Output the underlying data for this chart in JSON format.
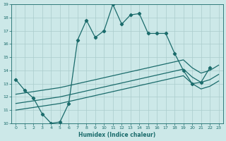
{
  "xlabel": "Humidex (Indice chaleur)",
  "bg_color": "#cce8e8",
  "line_color": "#1a6b6b",
  "grid_color": "#aacccc",
  "xlim": [
    -0.5,
    23.5
  ],
  "ylim": [
    10,
    19
  ],
  "yticks": [
    10,
    11,
    12,
    13,
    14,
    15,
    16,
    17,
    18,
    19
  ],
  "xticks": [
    0,
    1,
    2,
    3,
    4,
    5,
    6,
    7,
    8,
    9,
    10,
    11,
    12,
    13,
    14,
    15,
    16,
    17,
    18,
    19,
    20,
    21,
    22,
    23
  ],
  "line1_x": [
    0,
    1,
    2,
    3,
    4,
    5,
    6,
    7,
    8,
    9,
    10,
    11,
    12,
    13,
    14,
    15,
    16,
    17,
    18,
    19,
    20,
    21,
    22
  ],
  "line1_y": [
    13.3,
    12.5,
    11.9,
    10.7,
    10.0,
    10.1,
    11.5,
    16.3,
    17.8,
    16.5,
    17.0,
    19.0,
    17.5,
    18.2,
    18.3,
    16.8,
    16.8,
    16.8,
    15.3,
    14.0,
    13.0,
    13.1,
    14.2
  ],
  "line2_x": [
    0,
    1,
    2,
    3,
    4,
    5,
    6,
    7,
    8,
    9,
    10,
    11,
    12,
    13,
    14,
    15,
    16,
    17,
    18,
    19,
    20,
    21,
    22,
    23
  ],
  "line2_y": [
    12.2,
    12.3,
    12.4,
    12.5,
    12.6,
    12.7,
    12.85,
    13.0,
    13.15,
    13.3,
    13.45,
    13.6,
    13.75,
    13.9,
    14.05,
    14.2,
    14.35,
    14.5,
    14.65,
    14.8,
    14.2,
    13.8,
    14.0,
    14.4
  ],
  "line3_x": [
    0,
    1,
    2,
    3,
    4,
    5,
    6,
    7,
    8,
    9,
    10,
    11,
    12,
    13,
    14,
    15,
    16,
    17,
    18,
    19,
    20,
    21,
    22,
    23
  ],
  "line3_y": [
    11.5,
    11.6,
    11.7,
    11.8,
    11.9,
    12.0,
    12.15,
    12.3,
    12.45,
    12.6,
    12.75,
    12.9,
    13.05,
    13.2,
    13.35,
    13.5,
    13.65,
    13.8,
    13.95,
    14.1,
    13.5,
    13.1,
    13.3,
    13.7
  ],
  "line4_x": [
    0,
    1,
    2,
    3,
    4,
    5,
    6,
    7,
    8,
    9,
    10,
    11,
    12,
    13,
    14,
    15,
    16,
    17,
    18,
    19,
    20,
    21,
    22,
    23
  ],
  "line4_y": [
    11.0,
    11.1,
    11.2,
    11.3,
    11.4,
    11.5,
    11.65,
    11.8,
    11.95,
    12.1,
    12.25,
    12.4,
    12.55,
    12.7,
    12.85,
    13.0,
    13.15,
    13.3,
    13.45,
    13.6,
    13.0,
    12.6,
    12.8,
    13.2
  ]
}
